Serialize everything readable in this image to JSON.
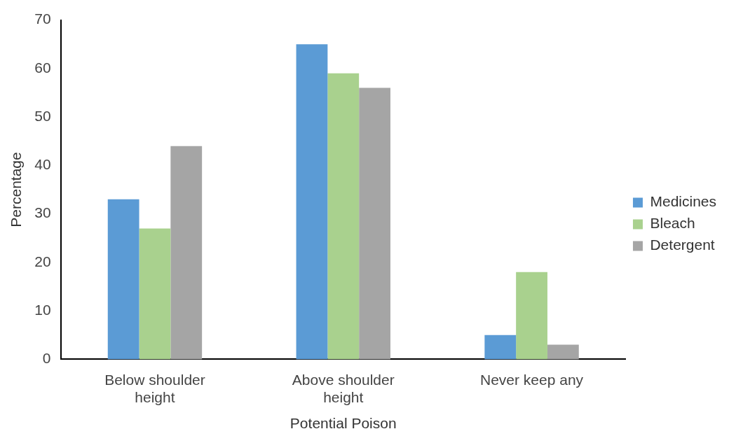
{
  "chart_data": {
    "type": "bar",
    "xlabel": "Potential Poison",
    "ylabel": "Percentage",
    "categories": [
      "Below shoulder height",
      "Above shoulder height",
      "Never keep any"
    ],
    "series": [
      {
        "name": "Medicines",
        "color": "#5b9bd5",
        "values": [
          33,
          65,
          5
        ]
      },
      {
        "name": "Bleach",
        "color": "#a9d18e",
        "values": [
          27,
          59,
          18
        ]
      },
      {
        "name": "Detergent",
        "color": "#a5a5a5",
        "values": [
          44,
          56,
          3
        ]
      }
    ],
    "ylim": [
      0,
      70
    ],
    "yticks": [
      0,
      10,
      20,
      30,
      40,
      50,
      60,
      70
    ],
    "grid": false,
    "legend": "right"
  }
}
